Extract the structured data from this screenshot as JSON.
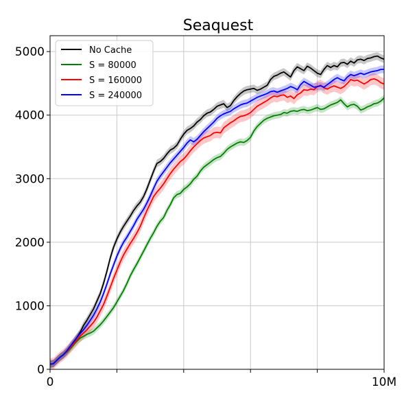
{
  "chart_data": {
    "type": "line",
    "title": "Seaquest",
    "xlabel": "",
    "ylabel": "",
    "xlim": [
      0,
      10
    ],
    "ylim": [
      0,
      5250
    ],
    "x_ticks": [
      0,
      10
    ],
    "x_tick_labels": [
      "0",
      "10M"
    ],
    "x_grid": [
      2,
      4,
      6,
      8
    ],
    "y_ticks": [
      0,
      1000,
      2000,
      3000,
      4000,
      5000
    ],
    "y_tick_labels": [
      "0",
      "1000",
      "2000",
      "3000",
      "4000",
      "5000"
    ],
    "grid": true,
    "legend_position": "top-left",
    "series": [
      {
        "name": "No Cache",
        "color": "#000000",
        "band": 60,
        "x": [
          0,
          0.1,
          0.2,
          0.3,
          0.4,
          0.5,
          0.6,
          0.7,
          0.8,
          0.9,
          1.0,
          1.1,
          1.2,
          1.3,
          1.4,
          1.5,
          1.6,
          1.7,
          1.8,
          1.9,
          2.0,
          2.1,
          2.2,
          2.3,
          2.4,
          2.5,
          2.6,
          2.7,
          2.8,
          2.9,
          3.0,
          3.1,
          3.2,
          3.3,
          3.4,
          3.5,
          3.6,
          3.7,
          3.8,
          3.9,
          4.0,
          4.1,
          4.2,
          4.3,
          4.4,
          4.5,
          4.6,
          4.7,
          4.8,
          4.9,
          5.0,
          5.1,
          5.2,
          5.3,
          5.4,
          5.5,
          5.6,
          5.7,
          5.8,
          5.9,
          6.0,
          6.1,
          6.2,
          6.3,
          6.4,
          6.5,
          6.6,
          6.7,
          6.8,
          6.9,
          7.0,
          7.1,
          7.2,
          7.3,
          7.4,
          7.5,
          7.6,
          7.7,
          7.8,
          7.9,
          8.0,
          8.1,
          8.2,
          8.3,
          8.4,
          8.5,
          8.6,
          8.7,
          8.8,
          8.9,
          9.0,
          9.1,
          9.2,
          9.3,
          9.4,
          9.5,
          9.6,
          9.7,
          9.8,
          9.9,
          10.0
        ],
        "y": [
          80,
          90,
          140,
          190,
          230,
          280,
          350,
          420,
          500,
          580,
          690,
          770,
          860,
          950,
          1070,
          1190,
          1350,
          1540,
          1750,
          1920,
          2050,
          2160,
          2250,
          2330,
          2410,
          2500,
          2570,
          2630,
          2720,
          2840,
          2980,
          3120,
          3240,
          3270,
          3320,
          3390,
          3450,
          3480,
          3530,
          3620,
          3700,
          3760,
          3790,
          3830,
          3890,
          3930,
          3990,
          4030,
          4050,
          4090,
          4140,
          4160,
          4180,
          4120,
          4150,
          4230,
          4290,
          4340,
          4380,
          4400,
          4410,
          4420,
          4390,
          4410,
          4440,
          4470,
          4560,
          4610,
          4630,
          4660,
          4680,
          4640,
          4600,
          4700,
          4760,
          4730,
          4700,
          4770,
          4740,
          4700,
          4660,
          4640,
          4720,
          4780,
          4750,
          4780,
          4760,
          4820,
          4830,
          4800,
          4850,
          4820,
          4870,
          4880,
          4860,
          4890,
          4900,
          4920,
          4930,
          4900,
          4880
        ]
      },
      {
        "name": "S = 80000",
        "color": "#008000",
        "band": 55,
        "x": [
          0,
          0.1,
          0.2,
          0.3,
          0.4,
          0.5,
          0.6,
          0.7,
          0.8,
          0.9,
          1.0,
          1.1,
          1.2,
          1.3,
          1.4,
          1.5,
          1.6,
          1.7,
          1.8,
          1.9,
          2.0,
          2.1,
          2.2,
          2.3,
          2.4,
          2.5,
          2.6,
          2.7,
          2.8,
          2.9,
          3.0,
          3.1,
          3.2,
          3.3,
          3.4,
          3.5,
          3.6,
          3.7,
          3.8,
          3.9,
          4.0,
          4.1,
          4.2,
          4.3,
          4.4,
          4.5,
          4.6,
          4.7,
          4.8,
          4.9,
          5.0,
          5.1,
          5.2,
          5.3,
          5.4,
          5.5,
          5.6,
          5.7,
          5.8,
          5.9,
          6.0,
          6.1,
          6.2,
          6.3,
          6.4,
          6.5,
          6.6,
          6.7,
          6.8,
          6.9,
          7.0,
          7.1,
          7.2,
          7.3,
          7.4,
          7.5,
          7.6,
          7.7,
          7.8,
          7.9,
          8.0,
          8.1,
          8.2,
          8.3,
          8.4,
          8.5,
          8.6,
          8.7,
          8.8,
          8.9,
          9.0,
          9.1,
          9.2,
          9.3,
          9.4,
          9.5,
          9.6,
          9.7,
          9.8,
          9.9,
          10.0
        ],
        "y": [
          80,
          90,
          140,
          190,
          230,
          270,
          320,
          380,
          440,
          490,
          520,
          550,
          570,
          600,
          650,
          700,
          760,
          830,
          900,
          970,
          1060,
          1150,
          1240,
          1350,
          1470,
          1570,
          1660,
          1760,
          1860,
          1960,
          2060,
          2150,
          2250,
          2330,
          2390,
          2500,
          2590,
          2700,
          2750,
          2770,
          2830,
          2870,
          2920,
          2990,
          3040,
          3120,
          3180,
          3220,
          3260,
          3300,
          3330,
          3350,
          3400,
          3460,
          3500,
          3530,
          3560,
          3580,
          3570,
          3600,
          3650,
          3750,
          3820,
          3870,
          3920,
          3950,
          3970,
          3990,
          4000,
          4010,
          4040,
          4030,
          4060,
          4070,
          4060,
          4080,
          4090,
          4070,
          4080,
          4100,
          4120,
          4090,
          4100,
          4130,
          4160,
          4180,
          4200,
          4240,
          4180,
          4130,
          4160,
          4170,
          4140,
          4080,
          4100,
          4130,
          4150,
          4180,
          4190,
          4220,
          4270
        ]
      },
      {
        "name": "S = 160000",
        "color": "#ff0000",
        "band": 90,
        "x": [
          0,
          0.1,
          0.2,
          0.3,
          0.4,
          0.5,
          0.6,
          0.7,
          0.8,
          0.9,
          1.0,
          1.1,
          1.2,
          1.3,
          1.4,
          1.5,
          1.6,
          1.7,
          1.8,
          1.9,
          2.0,
          2.1,
          2.2,
          2.3,
          2.4,
          2.5,
          2.6,
          2.7,
          2.8,
          2.9,
          3.0,
          3.1,
          3.2,
          3.3,
          3.4,
          3.5,
          3.6,
          3.7,
          3.8,
          3.9,
          4.0,
          4.1,
          4.2,
          4.3,
          4.4,
          4.5,
          4.6,
          4.7,
          4.8,
          4.9,
          5.0,
          5.1,
          5.2,
          5.3,
          5.4,
          5.5,
          5.6,
          5.7,
          5.8,
          5.9,
          6.0,
          6.1,
          6.2,
          6.3,
          6.4,
          6.5,
          6.6,
          6.7,
          6.8,
          6.9,
          7.0,
          7.1,
          7.2,
          7.3,
          7.4,
          7.5,
          7.6,
          7.7,
          7.8,
          7.9,
          8.0,
          8.1,
          8.2,
          8.3,
          8.4,
          8.5,
          8.6,
          8.7,
          8.8,
          8.9,
          9.0,
          9.1,
          9.2,
          9.3,
          9.4,
          9.5,
          9.6,
          9.7,
          9.8,
          9.9,
          10.0
        ],
        "y": [
          80,
          90,
          140,
          190,
          230,
          280,
          340,
          400,
          460,
          520,
          570,
          620,
          680,
          740,
          820,
          920,
          1020,
          1150,
          1290,
          1430,
          1560,
          1690,
          1800,
          1890,
          1980,
          2060,
          2150,
          2250,
          2380,
          2500,
          2610,
          2720,
          2790,
          2850,
          2920,
          3000,
          3080,
          3150,
          3210,
          3270,
          3310,
          3370,
          3440,
          3500,
          3550,
          3600,
          3640,
          3660,
          3680,
          3720,
          3730,
          3720,
          3800,
          3840,
          3880,
          3910,
          3950,
          3980,
          3990,
          4010,
          4040,
          4090,
          4140,
          4170,
          4200,
          4230,
          4270,
          4300,
          4290,
          4310,
          4320,
          4280,
          4300,
          4260,
          4320,
          4350,
          4400,
          4390,
          4410,
          4400,
          4450,
          4470,
          4430,
          4410,
          4440,
          4460,
          4440,
          4420,
          4450,
          4500,
          4560,
          4540,
          4550,
          4520,
          4490,
          4520,
          4560,
          4570,
          4550,
          4510,
          4490
        ]
      },
      {
        "name": "S = 240000",
        "color": "#0000ff",
        "band": 60,
        "x": [
          0,
          0.1,
          0.2,
          0.3,
          0.4,
          0.5,
          0.6,
          0.7,
          0.8,
          0.9,
          1.0,
          1.1,
          1.2,
          1.3,
          1.4,
          1.5,
          1.6,
          1.7,
          1.8,
          1.9,
          2.0,
          2.1,
          2.2,
          2.3,
          2.4,
          2.5,
          2.6,
          2.7,
          2.8,
          2.9,
          3.0,
          3.1,
          3.2,
          3.3,
          3.4,
          3.5,
          3.6,
          3.7,
          3.8,
          3.9,
          4.0,
          4.1,
          4.2,
          4.3,
          4.4,
          4.5,
          4.6,
          4.7,
          4.8,
          4.9,
          5.0,
          5.1,
          5.2,
          5.3,
          5.4,
          5.5,
          5.6,
          5.7,
          5.8,
          5.9,
          6.0,
          6.1,
          6.2,
          6.3,
          6.4,
          6.5,
          6.6,
          6.7,
          6.8,
          6.9,
          7.0,
          7.1,
          7.2,
          7.3,
          7.4,
          7.5,
          7.6,
          7.7,
          7.8,
          7.9,
          8.0,
          8.1,
          8.2,
          8.3,
          8.4,
          8.5,
          8.6,
          8.7,
          8.8,
          8.9,
          9.0,
          9.1,
          9.2,
          9.3,
          9.4,
          9.5,
          9.6,
          9.7,
          9.8,
          9.9,
          10.0
        ],
        "y": [
          80,
          90,
          140,
          190,
          230,
          290,
          360,
          430,
          500,
          560,
          620,
          690,
          770,
          850,
          950,
          1060,
          1190,
          1340,
          1500,
          1640,
          1780,
          1900,
          2000,
          2080,
          2170,
          2260,
          2360,
          2440,
          2520,
          2620,
          2730,
          2850,
          2960,
          3040,
          3110,
          3180,
          3250,
          3310,
          3370,
          3430,
          3490,
          3560,
          3610,
          3580,
          3620,
          3680,
          3740,
          3790,
          3840,
          3890,
          3950,
          3990,
          4020,
          4040,
          4060,
          4100,
          4130,
          4160,
          4180,
          4190,
          4220,
          4250,
          4280,
          4300,
          4320,
          4340,
          4370,
          4380,
          4360,
          4380,
          4400,
          4420,
          4450,
          4430,
          4400,
          4480,
          4530,
          4500,
          4470,
          4440,
          4450,
          4460,
          4440,
          4480,
          4520,
          4560,
          4590,
          4560,
          4540,
          4600,
          4640,
          4620,
          4640,
          4660,
          4640,
          4660,
          4680,
          4690,
          4700,
          4720,
          4720
        ]
      }
    ]
  }
}
